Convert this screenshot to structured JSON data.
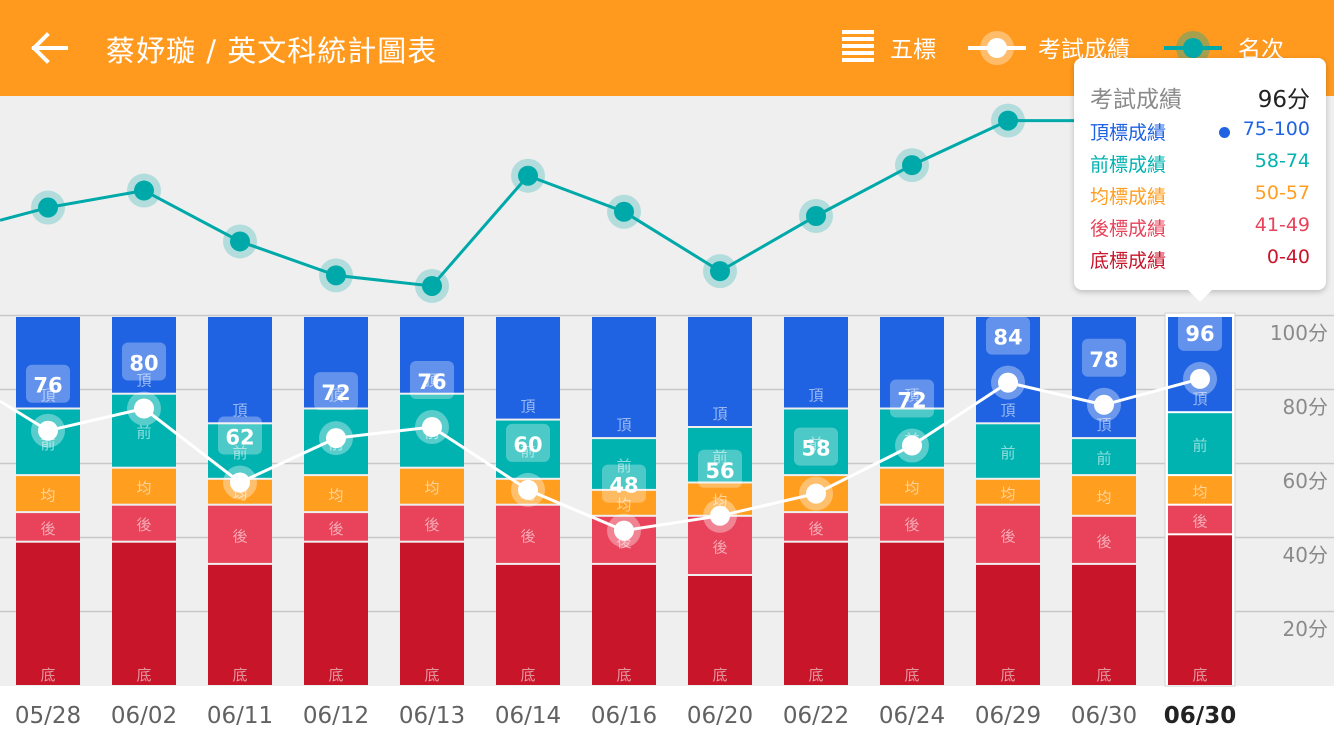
{
  "header": {
    "title": "蔡妤璇 / 英文科統計圖表",
    "legend": {
      "bands_label": "五標",
      "score_label": "考試成績",
      "rank_label": "名次"
    }
  },
  "colors": {
    "header": "#FF9A1E",
    "top": "#1F63E3",
    "front": "#00B3B0",
    "mean": "#FF9E1F",
    "back": "#E8435A",
    "bottom": "#C9152A",
    "rank_line": "#00A9A9",
    "score_line": "#ffffff"
  },
  "tooltip": {
    "score_label": "考試成績",
    "score_value": "96分",
    "rows": [
      {
        "name": "頂標成績",
        "range": "75-100",
        "color": "#1F63E3",
        "marked": true
      },
      {
        "name": "前標成績",
        "range": "58-74",
        "color": "#00B3B0",
        "marked": false
      },
      {
        "name": "均標成績",
        "range": "50-57",
        "color": "#FF9E1F",
        "marked": false
      },
      {
        "name": "後標成績",
        "range": "41-49",
        "color": "#E8435A",
        "marked": false
      },
      {
        "name": "底標成績",
        "range": "0-40",
        "color": "#C9152A",
        "marked": false
      }
    ]
  },
  "chart_data": {
    "type": "bar",
    "categories": [
      "05/28",
      "06/02",
      "06/11",
      "06/12",
      "06/13",
      "06/14",
      "06/16",
      "06/20",
      "06/22",
      "06/24",
      "06/29",
      "06/30",
      "06/30"
    ],
    "selected_index": 12,
    "yaxis": {
      "ticks": [
        100,
        80,
        60,
        40,
        20
      ],
      "tick_labels": [
        "100分",
        "80分",
        "60分",
        "40分",
        "20分"
      ],
      "ylim": [
        0,
        100
      ],
      "grid": true
    },
    "band_labels": {
      "top": "頂",
      "front": "前",
      "mean": "均",
      "back": "後",
      "bottom": "底"
    },
    "bands": [
      {
        "bottom": 39,
        "back": 47,
        "mean": 57,
        "front": 75
      },
      {
        "bottom": 39,
        "back": 49,
        "mean": 59,
        "front": 79
      },
      {
        "bottom": 33,
        "back": 49,
        "mean": 56,
        "front": 71
      },
      {
        "bottom": 39,
        "back": 47,
        "mean": 57,
        "front": 75
      },
      {
        "bottom": 39,
        "back": 49,
        "mean": 59,
        "front": 79
      },
      {
        "bottom": 33,
        "back": 49,
        "mean": 56,
        "front": 72
      },
      {
        "bottom": 33,
        "back": 46,
        "mean": 53,
        "front": 67
      },
      {
        "bottom": 30,
        "back": 46,
        "mean": 55,
        "front": 70
      },
      {
        "bottom": 39,
        "back": 47,
        "mean": 57,
        "front": 75
      },
      {
        "bottom": 39,
        "back": 49,
        "mean": 59,
        "front": 75
      },
      {
        "bottom": 33,
        "back": 49,
        "mean": 56,
        "front": 71
      },
      {
        "bottom": 33,
        "back": 46,
        "mean": 57,
        "front": 67
      },
      {
        "bottom": 41,
        "back": 49,
        "mean": 57,
        "front": 74
      }
    ],
    "score": {
      "name": "考試成績",
      "values": [
        76,
        80,
        62,
        72,
        76,
        60,
        48,
        56,
        58,
        72,
        84,
        78,
        96
      ],
      "display_values": [
        69,
        75,
        55,
        67,
        70,
        53,
        42,
        46,
        52,
        65,
        82,
        76,
        83
      ]
    },
    "rank": {
      "name": "名次",
      "values": [
        46,
        38,
        62,
        78,
        83,
        31,
        48,
        76,
        50,
        26,
        5,
        5,
        5
      ]
    }
  }
}
